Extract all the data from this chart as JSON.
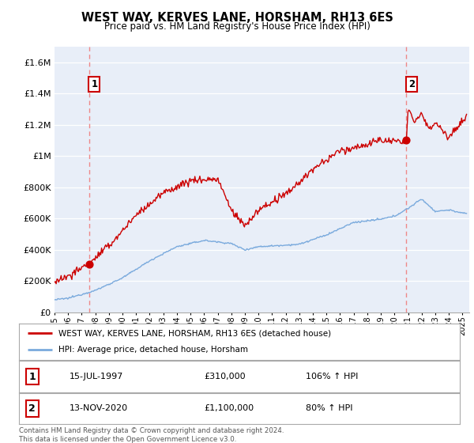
{
  "title": "WEST WAY, KERVES LANE, HORSHAM, RH13 6ES",
  "subtitle": "Price paid vs. HM Land Registry's House Price Index (HPI)",
  "hpi_color": "#7aaadd",
  "price_color": "#cc0000",
  "dashed_color": "#ee8888",
  "plot_bg": "#e8eef8",
  "ylim": [
    0,
    1700000
  ],
  "yticks": [
    0,
    200000,
    400000,
    600000,
    800000,
    1000000,
    1200000,
    1400000,
    1600000
  ],
  "ytick_labels": [
    "£0",
    "£200K",
    "£400K",
    "£600K",
    "£800K",
    "£1M",
    "£1.2M",
    "£1.4M",
    "£1.6M"
  ],
  "sale1_year": 1997.54,
  "sale1_price": 310000,
  "sale1_label": "1",
  "sale1_date": "15-JUL-1997",
  "sale1_amount": "£310,000",
  "sale1_hpi": "106% ↑ HPI",
  "sale2_year": 2020.87,
  "sale2_price": 1100000,
  "sale2_label": "2",
  "sale2_date": "13-NOV-2020",
  "sale2_amount": "£1,100,000",
  "sale2_hpi": "80% ↑ HPI",
  "legend_entry1": "WEST WAY, KERVES LANE, HORSHAM, RH13 6ES (detached house)",
  "legend_entry2": "HPI: Average price, detached house, Horsham",
  "footer": "Contains HM Land Registry data © Crown copyright and database right 2024.\nThis data is licensed under the Open Government Licence v3.0.",
  "xlim_min": 1995.0,
  "xlim_max": 2025.5
}
